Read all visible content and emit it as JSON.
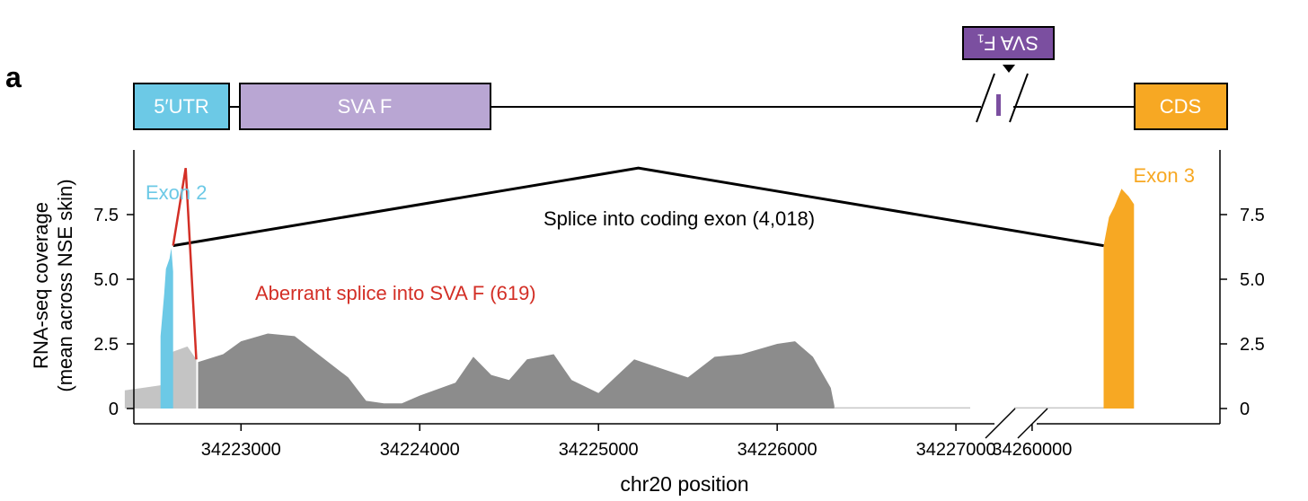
{
  "panel_label": "a",
  "gene_model": {
    "utr_label": "5′UTR",
    "sva_label": "SVA F",
    "cds_label": "CDS",
    "insert_label": "SVA F₁",
    "colors": {
      "utr": "#6cc9e6",
      "sva": "#b9a6d3",
      "cds": "#f7a823",
      "insert": "#7b4fa0"
    }
  },
  "chart_data": {
    "type": "area",
    "xlabel": "chr20 position",
    "ylabel_line1": "RNA-seq coverage",
    "ylabel_line2": "(mean across NSE skin)",
    "ylim": [
      0,
      9.5
    ],
    "yticks": [
      "0",
      "2.5",
      "5.0",
      "7.5"
    ],
    "yticks_right": [
      "0",
      "2.5",
      "5.0",
      "7.5"
    ],
    "axis_break": true,
    "left_segment": {
      "xlim": [
        34222300,
        34227100
      ],
      "xticks": [
        "34223000",
        "34224000",
        "34225000",
        "34226000",
        "34227000"
      ],
      "tick_values": [
        34223000,
        34224000,
        34225000,
        34226000,
        34227000
      ]
    },
    "right_segment": {
      "xlim": [
        34259900,
        34260900
      ],
      "xticks": [
        "34260000"
      ],
      "tick_values": [
        34260000
      ]
    },
    "series": [
      {
        "name": "Exon 2",
        "color": "#6cc9e6",
        "x": [
          34222550,
          34222570,
          34222580,
          34222600,
          34222610,
          34222620
        ],
        "y": [
          2.8,
          4.4,
          5.4,
          5.8,
          6.2,
          5.3
        ]
      },
      {
        "name": "Exon 3",
        "color": "#f7a823",
        "x": [
          34260400,
          34260430,
          34260460,
          34260500,
          34260540,
          34260570
        ],
        "y": [
          6.3,
          7.4,
          7.8,
          8.5,
          8.2,
          7.9
        ]
      }
    ],
    "coverage_light": {
      "color": "#c4c4c4",
      "x": [
        34222350,
        34222450,
        34222550,
        34222620,
        34222700,
        34222750
      ],
      "y": [
        0.7,
        0.8,
        0.9,
        2.2,
        2.4,
        1.9
      ]
    },
    "coverage_dark": {
      "color": "#8c8c8c",
      "x": [
        34222760,
        34222900,
        34223000,
        34223150,
        34223300,
        34223450,
        34223600,
        34223700,
        34223800,
        34223900,
        34224000,
        34224200,
        34224300,
        34224400,
        34224500,
        34224600,
        34224750,
        34224850,
        34225000,
        34225200,
        34225500,
        34225650,
        34225800,
        34225900,
        34226000,
        34226100,
        34226200,
        34226300,
        34226320
      ],
      "y": [
        1.8,
        2.1,
        2.6,
        2.9,
        2.8,
        2.0,
        1.2,
        0.3,
        0.2,
        0.2,
        0.5,
        1.0,
        2.0,
        1.3,
        1.1,
        1.9,
        2.1,
        1.1,
        0.6,
        1.9,
        1.2,
        2.0,
        2.1,
        2.3,
        2.5,
        2.6,
        2.0,
        0.8,
        0.1
      ]
    },
    "coverage_tail": {
      "color": "#c4c4c4",
      "x": [
        34226320,
        34227080
      ],
      "y": [
        0.05,
        0.05
      ]
    },
    "coverage_tail_right": {
      "color": "#c4c4c4",
      "x": [
        34259900,
        34260400
      ],
      "y": [
        0.05,
        0.05
      ]
    },
    "junctions": [
      {
        "label": "Splice into coding exon (4,018)",
        "reads": 4018,
        "color": "#000000",
        "from_x": 34222620,
        "to_x": 34260400,
        "from_y": 6.3,
        "to_y": 6.3,
        "peak_y": 9.3
      },
      {
        "label": "Aberrant splice into SVA F (619)",
        "reads": 619,
        "color": "#d32f26",
        "from_x": 34222620,
        "to_x": 34222750,
        "from_y": 6.3,
        "to_y": 1.9,
        "peak_y": 9.3
      }
    ],
    "grid": false
  }
}
